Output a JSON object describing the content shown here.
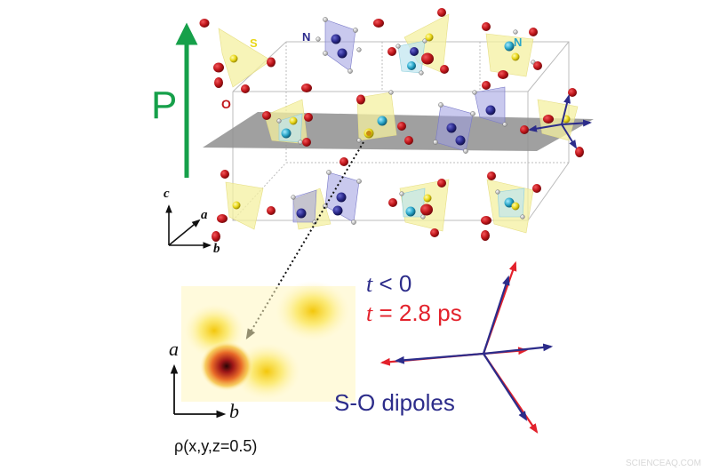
{
  "crystal": {
    "polarization_label": "P",
    "sulfur_label": "S",
    "nitrogen_label": "N",
    "nitrogen_label_cyan": "N",
    "oxygen_label": "O"
  },
  "axes_3d": {
    "c": "c",
    "a": "a",
    "b": "b"
  },
  "density_map": {
    "axis_a": "a",
    "axis_b": "b",
    "caption": "ρ(x,y,z=0.5)"
  },
  "legend": {
    "t_var_1": "t",
    "t_rest_1": " < 0",
    "t_var_2": "t",
    "t_rest_2": " = 2.8 ps",
    "dipoles_label": "S-O dipoles"
  },
  "watermark": "SCIENCEAQ.COM",
  "colors": {
    "polarization_arrow": "#16a04a",
    "oxygen": "#c0161b",
    "sulfur": "#e8d617",
    "nitrogen": "#2b2a8c",
    "cyan_nitrogen": "#2aa6c8",
    "tetra_yellow": "#f4f0a0",
    "tetra_purple": "#9c9ce0",
    "plane_gray": "#8f8f8f",
    "legend_blue": "#2c2c8a",
    "legend_red": "#e3212b"
  }
}
